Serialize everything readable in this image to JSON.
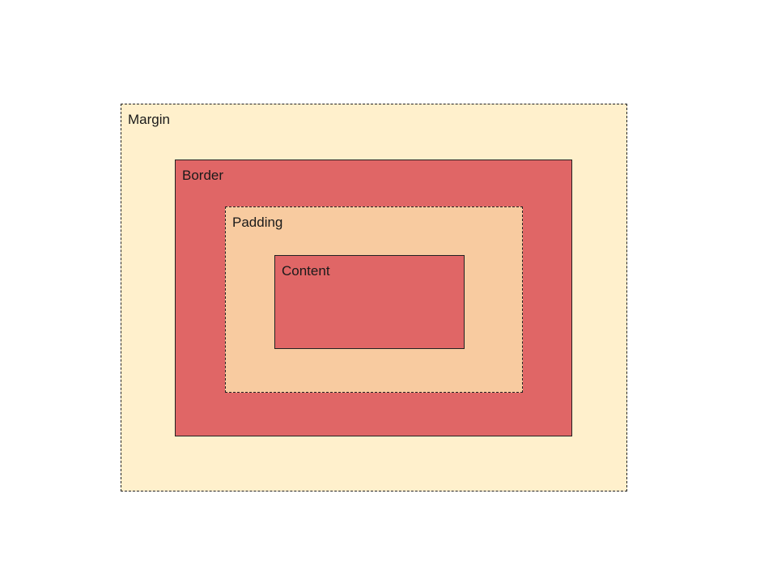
{
  "diagram": {
    "layers": {
      "margin": {
        "label": "Margin",
        "color": "#fff0cc"
      },
      "border": {
        "label": "Border",
        "color": "#e06666"
      },
      "padding": {
        "label": "Padding",
        "color": "#f8cba0"
      },
      "content": {
        "label": "Content",
        "color": "#e06666"
      }
    }
  }
}
